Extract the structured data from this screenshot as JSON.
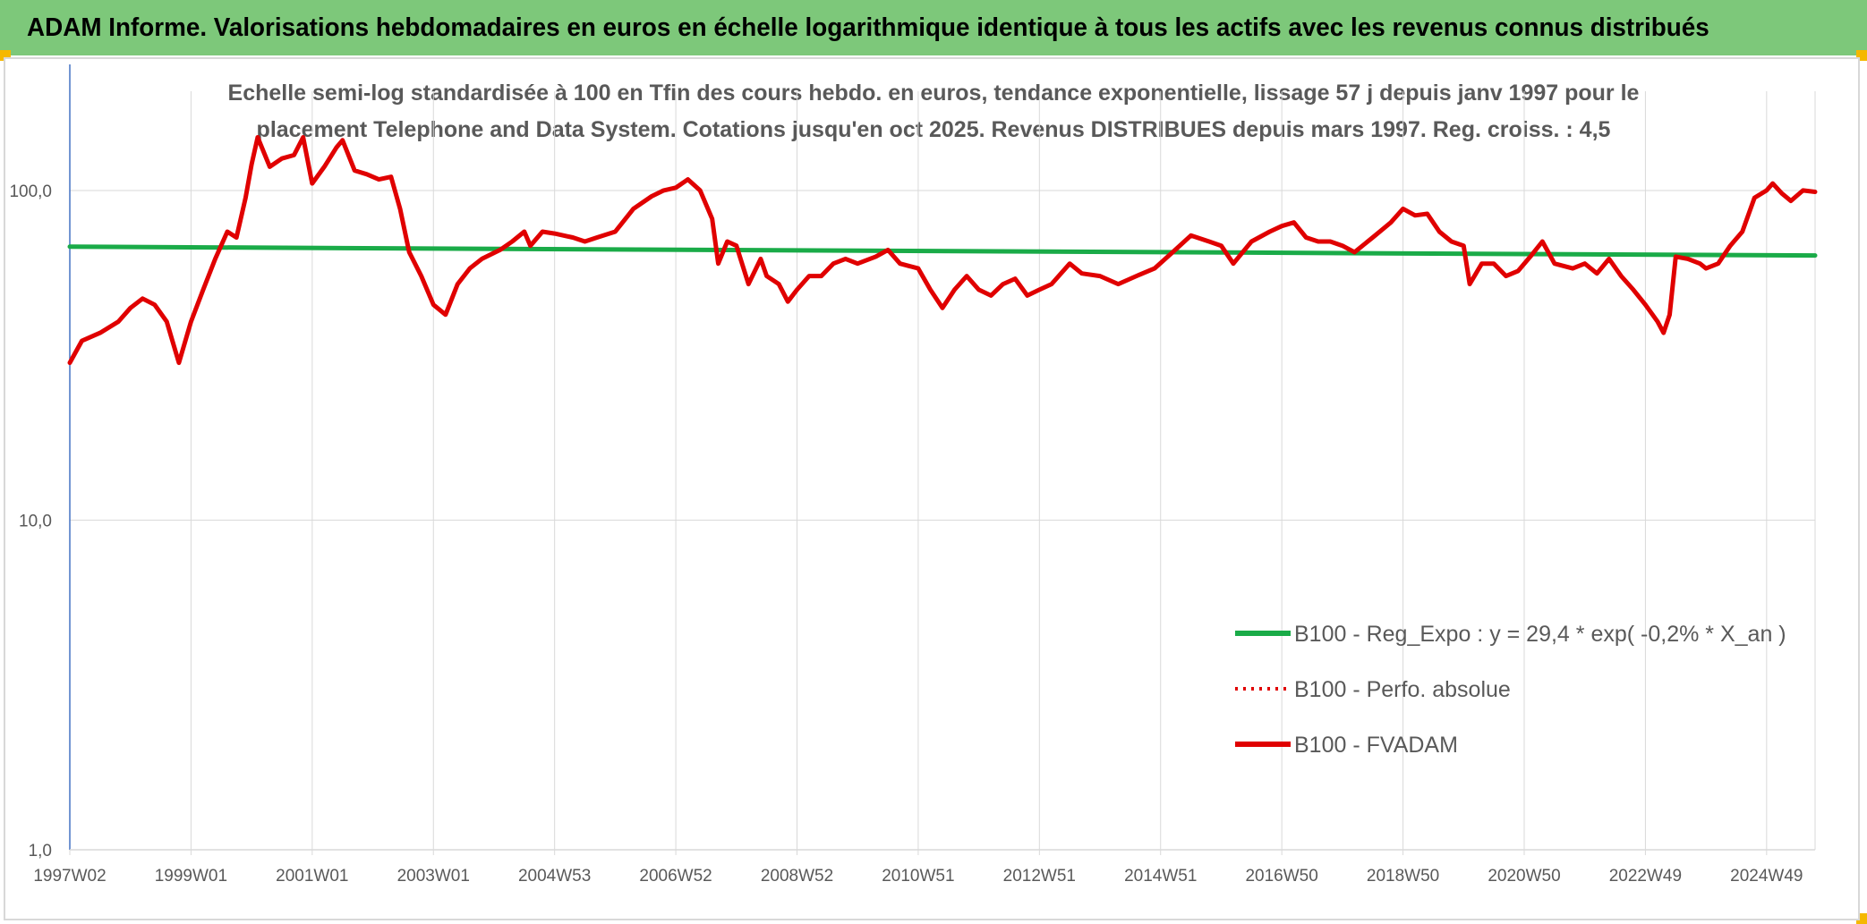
{
  "header": {
    "title": "ADAM Informe. Valorisations hebdomadaires en euros en échelle logarithmique identique à tous les actifs avec les revenus connus distribués"
  },
  "colors": {
    "banner": "#7dc87a",
    "accent": "#f5b800",
    "fvadam": "#e00000",
    "regression": "#1aab48",
    "axis": "#4472c4",
    "grid": "#d9d9d9",
    "text": "#595959"
  },
  "chart_data": {
    "type": "line",
    "title_lines": [
      "Echelle semi-log standardisée à 100 en Tfin des cours hebdo. en euros, tendance exponentielle, lissage 57 j depuis janv 1997 pour le",
      "placement Telephone and Data System. Cotations jusqu'en oct 2025. Revenus DISTRIBUES depuis mars 1997. Reg. croiss. : 4,5"
    ],
    "y_scale": "log",
    "ylim": [
      1,
      200
    ],
    "y_ticks": [
      {
        "value": 1,
        "label": "1,0"
      },
      {
        "value": 10,
        "label": "10,0"
      },
      {
        "value": 100,
        "label": "100,0"
      }
    ],
    "x_range": [
      1997.0,
      2025.8
    ],
    "x_ticks": [
      {
        "x": 1997.0,
        "label": "1997W02"
      },
      {
        "x": 1999.0,
        "label": "1999W01"
      },
      {
        "x": 2001.0,
        "label": "2001W01"
      },
      {
        "x": 2003.0,
        "label": "2003W01"
      },
      {
        "x": 2005.0,
        "label": "2004W53"
      },
      {
        "x": 2007.0,
        "label": "2006W52"
      },
      {
        "x": 2009.0,
        "label": "2008W52"
      },
      {
        "x": 2011.0,
        "label": "2010W51"
      },
      {
        "x": 2013.0,
        "label": "2012W51"
      },
      {
        "x": 2015.0,
        "label": "2014W51"
      },
      {
        "x": 2017.0,
        "label": "2016W50"
      },
      {
        "x": 2019.0,
        "label": "2018W50"
      },
      {
        "x": 2021.0,
        "label": "2020W50"
      },
      {
        "x": 2023.0,
        "label": "2022W49"
      },
      {
        "x": 2025.0,
        "label": "2024W49"
      }
    ],
    "series": [
      {
        "name": "B100 - Reg_Expo : y = 29,4 * exp( -0,2% *  X_an )",
        "style": "solid",
        "color": "#1aab48",
        "points": [
          [
            1997.0,
            67.5
          ],
          [
            2025.8,
            63.5
          ]
        ]
      },
      {
        "name": "B100 - Perfo. absolue",
        "style": "dotted",
        "color": "#e00000",
        "points": []
      },
      {
        "name": "B100 - FVADAM",
        "style": "solid",
        "color": "#e00000",
        "points": [
          [
            1997.0,
            30
          ],
          [
            1997.2,
            35
          ],
          [
            1997.5,
            37
          ],
          [
            1997.8,
            40
          ],
          [
            1998.0,
            44
          ],
          [
            1998.2,
            47
          ],
          [
            1998.4,
            45
          ],
          [
            1998.6,
            40
          ],
          [
            1998.8,
            30
          ],
          [
            1999.0,
            40
          ],
          [
            1999.2,
            50
          ],
          [
            1999.4,
            62
          ],
          [
            1999.6,
            75
          ],
          [
            1999.75,
            72
          ],
          [
            1999.9,
            95
          ],
          [
            2000.0,
            120
          ],
          [
            2000.1,
            145
          ],
          [
            2000.3,
            118
          ],
          [
            2000.5,
            125
          ],
          [
            2000.7,
            128
          ],
          [
            2000.85,
            145
          ],
          [
            2001.0,
            105
          ],
          [
            2001.2,
            118
          ],
          [
            2001.4,
            135
          ],
          [
            2001.5,
            142
          ],
          [
            2001.7,
            115
          ],
          [
            2001.9,
            112
          ],
          [
            2002.1,
            108
          ],
          [
            2002.3,
            110
          ],
          [
            2002.45,
            88
          ],
          [
            2002.6,
            65
          ],
          [
            2002.8,
            55
          ],
          [
            2003.0,
            45
          ],
          [
            2003.2,
            42
          ],
          [
            2003.4,
            52
          ],
          [
            2003.6,
            58
          ],
          [
            2003.8,
            62
          ],
          [
            2004.1,
            66
          ],
          [
            2004.3,
            70
          ],
          [
            2004.5,
            75
          ],
          [
            2004.6,
            68
          ],
          [
            2004.8,
            75
          ],
          [
            2005.0,
            74
          ],
          [
            2005.3,
            72
          ],
          [
            2005.5,
            70
          ],
          [
            2005.7,
            72
          ],
          [
            2006.0,
            75
          ],
          [
            2006.3,
            88
          ],
          [
            2006.6,
            96
          ],
          [
            2006.8,
            100
          ],
          [
            2007.0,
            102
          ],
          [
            2007.2,
            108
          ],
          [
            2007.4,
            100
          ],
          [
            2007.6,
            82
          ],
          [
            2007.7,
            60
          ],
          [
            2007.85,
            70
          ],
          [
            2008.0,
            68
          ],
          [
            2008.2,
            52
          ],
          [
            2008.4,
            62
          ],
          [
            2008.5,
            55
          ],
          [
            2008.7,
            52
          ],
          [
            2008.85,
            46
          ],
          [
            2009.0,
            50
          ],
          [
            2009.2,
            55
          ],
          [
            2009.4,
            55
          ],
          [
            2009.6,
            60
          ],
          [
            2009.8,
            62
          ],
          [
            2010.0,
            60
          ],
          [
            2010.3,
            63
          ],
          [
            2010.5,
            66
          ],
          [
            2010.7,
            60
          ],
          [
            2011.0,
            58
          ],
          [
            2011.2,
            50
          ],
          [
            2011.4,
            44
          ],
          [
            2011.6,
            50
          ],
          [
            2011.8,
            55
          ],
          [
            2012.0,
            50
          ],
          [
            2012.2,
            48
          ],
          [
            2012.4,
            52
          ],
          [
            2012.6,
            54
          ],
          [
            2012.8,
            48
          ],
          [
            2013.0,
            50
          ],
          [
            2013.2,
            52
          ],
          [
            2013.5,
            60
          ],
          [
            2013.7,
            56
          ],
          [
            2014.0,
            55
          ],
          [
            2014.3,
            52
          ],
          [
            2014.6,
            55
          ],
          [
            2014.9,
            58
          ],
          [
            2015.2,
            65
          ],
          [
            2015.5,
            73
          ],
          [
            2015.8,
            70
          ],
          [
            2016.0,
            68
          ],
          [
            2016.2,
            60
          ],
          [
            2016.5,
            70
          ],
          [
            2016.8,
            75
          ],
          [
            2017.0,
            78
          ],
          [
            2017.2,
            80
          ],
          [
            2017.4,
            72
          ],
          [
            2017.6,
            70
          ],
          [
            2017.8,
            70
          ],
          [
            2018.0,
            68
          ],
          [
            2018.2,
            65
          ],
          [
            2018.5,
            72
          ],
          [
            2018.8,
            80
          ],
          [
            2019.0,
            88
          ],
          [
            2019.2,
            84
          ],
          [
            2019.4,
            85
          ],
          [
            2019.6,
            75
          ],
          [
            2019.8,
            70
          ],
          [
            2020.0,
            68
          ],
          [
            2020.1,
            52
          ],
          [
            2020.3,
            60
          ],
          [
            2020.5,
            60
          ],
          [
            2020.7,
            55
          ],
          [
            2020.9,
            57
          ],
          [
            2021.1,
            63
          ],
          [
            2021.3,
            70
          ],
          [
            2021.5,
            60
          ],
          [
            2021.8,
            58
          ],
          [
            2022.0,
            60
          ],
          [
            2022.2,
            56
          ],
          [
            2022.4,
            62
          ],
          [
            2022.6,
            55
          ],
          [
            2022.8,
            50
          ],
          [
            2023.0,
            45
          ],
          [
            2023.2,
            40
          ],
          [
            2023.3,
            37
          ],
          [
            2023.4,
            42
          ],
          [
            2023.5,
            63
          ],
          [
            2023.7,
            62
          ],
          [
            2023.9,
            60
          ],
          [
            2024.0,
            58
          ],
          [
            2024.2,
            60
          ],
          [
            2024.4,
            68
          ],
          [
            2024.6,
            75
          ],
          [
            2024.8,
            95
          ],
          [
            2025.0,
            100
          ],
          [
            2025.1,
            105
          ],
          [
            2025.25,
            98
          ],
          [
            2025.4,
            93
          ],
          [
            2025.6,
            100
          ],
          [
            2025.8,
            99
          ]
        ]
      }
    ],
    "legend_position": "bottom-right"
  }
}
